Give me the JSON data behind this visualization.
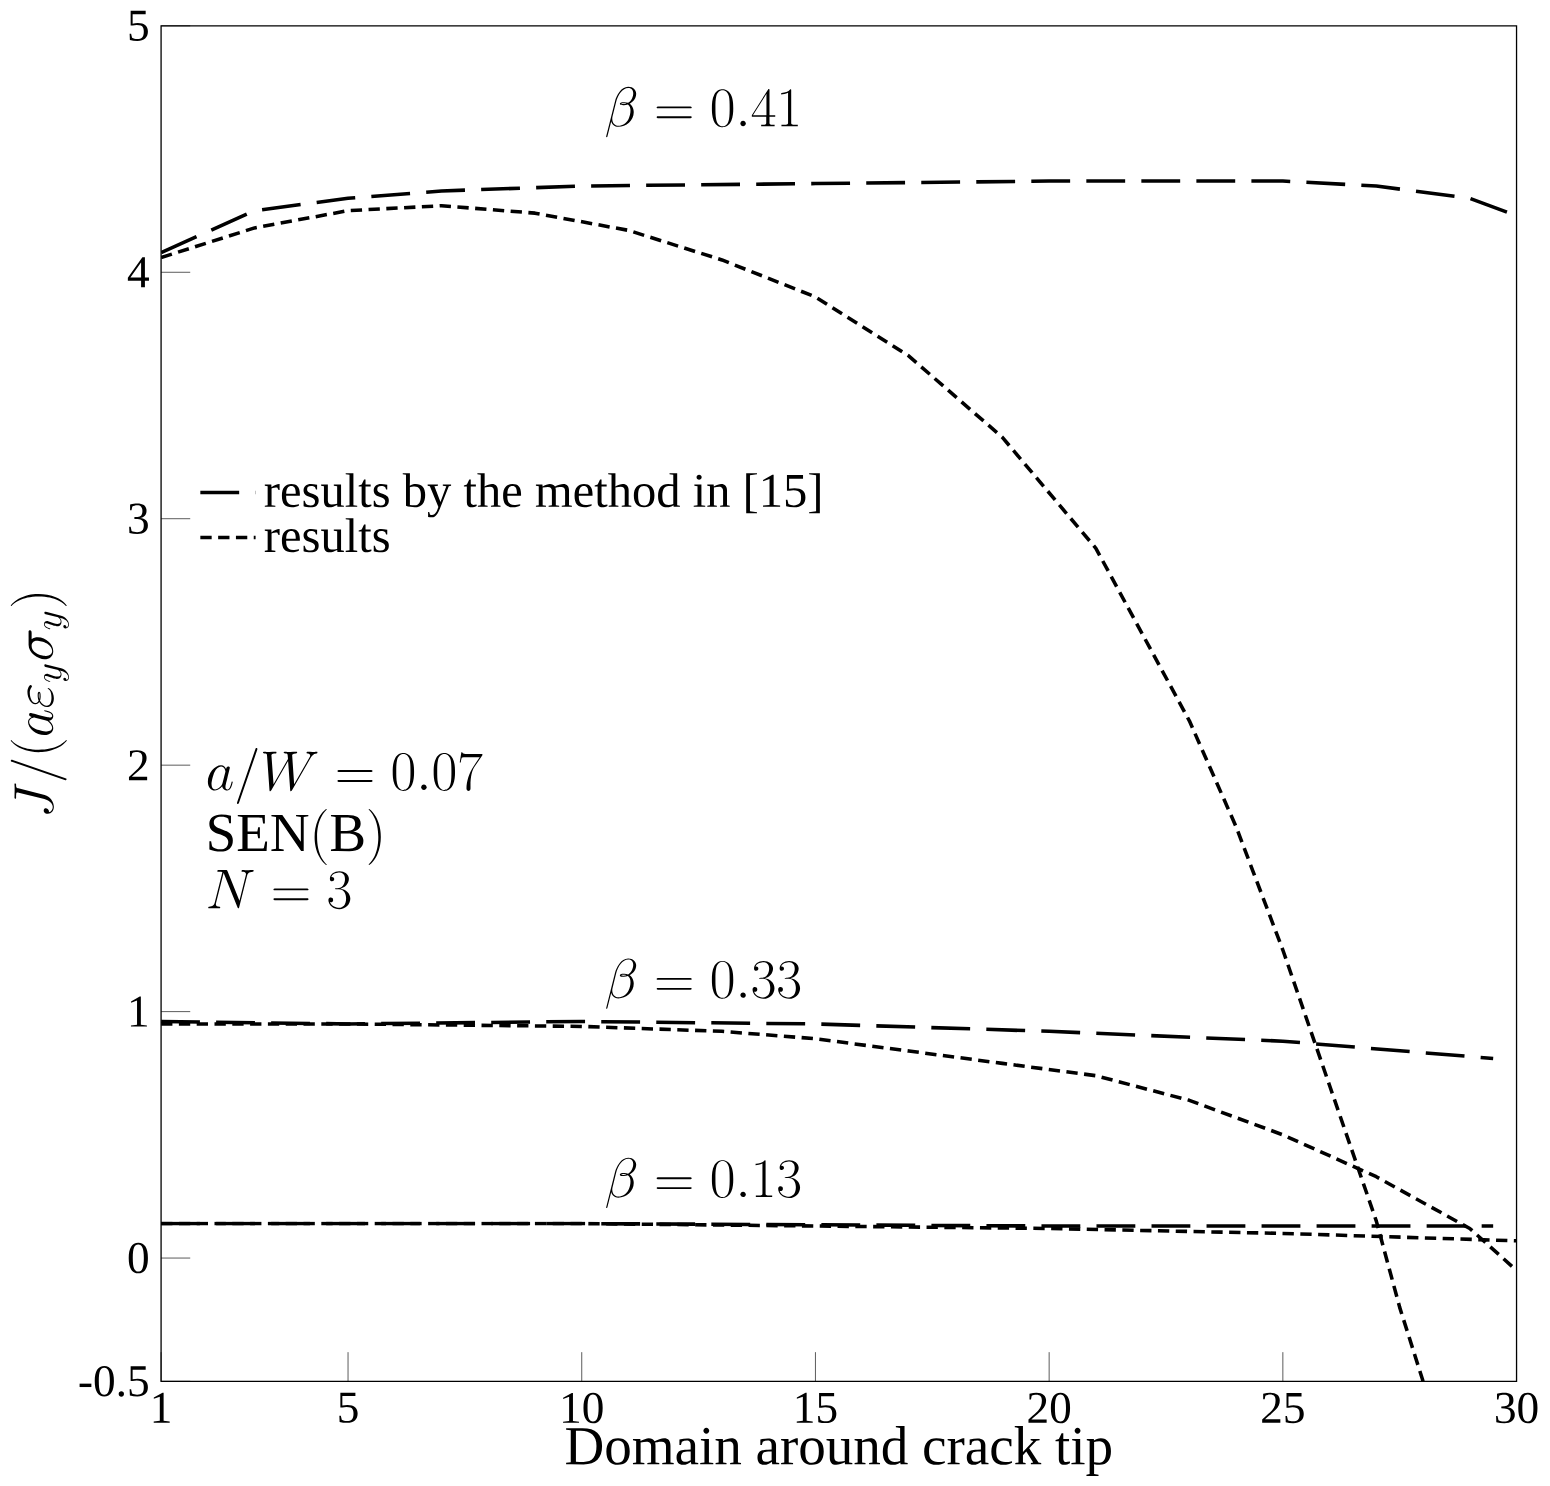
{
  "chart_data": {
    "type": "line",
    "xlabel": "Domain around crack tip",
    "ylabel": "J/(a\\varepsilon_y\\sigma_y)",
    "xlim": [
      1,
      30
    ],
    "ylim": [
      -0.5,
      5
    ],
    "xticks": [
      1,
      5,
      10,
      15,
      20,
      25,
      30
    ],
    "yticks": [
      {
        "value": -0.5,
        "label": "-0.5"
      },
      0,
      1,
      2,
      3,
      4,
      5
    ],
    "legend": "left",
    "marker": "none",
    "grid": false,
    "series": [
      {
        "name": "results by the method in [15]",
        "color": "#000000",
        "line_style": "dashed",
        "x": [
          1,
          3,
          5,
          7,
          10,
          15,
          20,
          25,
          27,
          29,
          30
        ],
        "values": [
          4.08,
          4.25,
          4.3,
          4.33,
          4.35,
          4.36,
          4.37,
          4.37,
          4.35,
          4.3,
          4.23
        ]
      },
      {
        "name": "results",
        "color": "#000000",
        "line_style": "dotted",
        "x": [
          1,
          3,
          5,
          7,
          9,
          11,
          13,
          15,
          17,
          19,
          21,
          23,
          24,
          25,
          26,
          27,
          27.5,
          28
        ],
        "values": [
          4.06,
          4.18,
          4.25,
          4.27,
          4.24,
          4.17,
          4.05,
          3.9,
          3.66,
          3.33,
          2.88,
          2.18,
          1.75,
          1.25,
          0.7,
          0.15,
          -0.2,
          -0.5
        ]
      },
      {
        "color": "#000000",
        "line_style": "dashed",
        "x": [
          1,
          5,
          10,
          15,
          20,
          25,
          29.5
        ],
        "values": [
          0.96,
          0.95,
          0.96,
          0.95,
          0.92,
          0.88,
          0.81
        ]
      },
      {
        "color": "#000000",
        "line_style": "dotted",
        "x": [
          1,
          5,
          10,
          13,
          15,
          17,
          19,
          21,
          23,
          25,
          27,
          29,
          30
        ],
        "values": [
          0.95,
          0.95,
          0.94,
          0.92,
          0.89,
          0.84,
          0.79,
          0.74,
          0.64,
          0.5,
          0.33,
          0.12,
          -0.05
        ]
      },
      {
        "color": "#000000",
        "line_style": "dashed",
        "x": [
          1,
          10,
          20,
          29.5
        ],
        "values": [
          0.14,
          0.14,
          0.13,
          0.13
        ]
      },
      {
        "color": "#000000",
        "line_style": "dotted",
        "x": [
          1,
          10,
          15,
          20,
          25,
          30
        ],
        "values": [
          0.14,
          0.14,
          0.13,
          0.12,
          0.1,
          0.07
        ]
      }
    ],
    "annotations": [
      "\\beta = 0.41",
      "\\beta = 0.33",
      "\\beta = 0.13",
      "a/W = 0.07",
      "\\mathrm{SEN(B)}",
      "N = 3"
    ]
  }
}
